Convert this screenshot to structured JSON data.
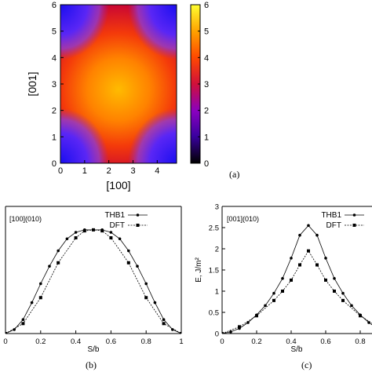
{
  "chart_data": [
    {
      "type": "heatmap",
      "panel_label": "(a)",
      "xlabel": "[100]",
      "ylabel": "[001]",
      "xlim": [
        0,
        4.8
      ],
      "ylim": [
        0,
        6
      ],
      "xticks": [
        0,
        1,
        2,
        3,
        4
      ],
      "yticks": [
        0,
        1,
        2,
        3,
        4,
        5,
        6
      ],
      "colorbar": {
        "min": 0,
        "max": 6,
        "ticks": [
          0,
          1,
          2,
          3,
          4,
          5,
          6
        ]
      },
      "colormap": [
        "#000000",
        "#4a00b0",
        "#8c00c8",
        "#d2003c",
        "#ff4a00",
        "#ff9a00",
        "#ffff30"
      ],
      "description_values": {
        "center_max": 3.9,
        "corner_min": 0.8
      }
    },
    {
      "type": "line",
      "panel_label": "(b)",
      "inset_label": "[100](010)",
      "xlabel": "S/b",
      "ylabel": "",
      "xlim": [
        0,
        1
      ],
      "xticks": [
        "0",
        "0.2",
        "0.4",
        "0.6",
        "0.8",
        "1"
      ],
      "series": [
        {
          "name": "THB1",
          "marker": "dot",
          "x": [
            0,
            0.05,
            0.1,
            0.15,
            0.2,
            0.25,
            0.3,
            0.35,
            0.4,
            0.45,
            0.5,
            0.55,
            0.6,
            0.65,
            0.7,
            0.75,
            0.8,
            0.85,
            0.9,
            0.95,
            1
          ],
          "y": [
            0,
            0.08,
            0.28,
            0.62,
            1.0,
            1.35,
            1.66,
            1.9,
            2.03,
            2.08,
            2.08,
            2.08,
            2.03,
            1.9,
            1.66,
            1.35,
            1.0,
            0.62,
            0.28,
            0.08,
            0
          ]
        },
        {
          "name": "DFT",
          "marker": "square",
          "x": [
            0,
            0.1,
            0.2,
            0.3,
            0.4,
            0.45,
            0.5,
            0.55,
            0.6,
            0.7,
            0.8,
            0.9,
            1
          ],
          "y": [
            0,
            0.2,
            0.72,
            1.42,
            1.92,
            2.06,
            2.08,
            2.06,
            1.92,
            1.42,
            0.72,
            0.2,
            0
          ]
        }
      ]
    },
    {
      "type": "line",
      "panel_label": "(c)",
      "inset_label": "[001](010)",
      "xlabel": "S/b",
      "ylabel": "E, J/m²",
      "xlim": [
        0,
        1
      ],
      "ylim": [
        0,
        3
      ],
      "xticks": [
        "0",
        "0.2",
        "0.4",
        "0.6",
        "0.8"
      ],
      "yticks": [
        "0",
        "0.5",
        "1",
        "1.5",
        "2",
        "2.5",
        "3"
      ],
      "series": [
        {
          "name": "THB1",
          "marker": "dot",
          "x": [
            0,
            0.05,
            0.1,
            0.15,
            0.2,
            0.25,
            0.3,
            0.35,
            0.4,
            0.45,
            0.5,
            0.55,
            0.6,
            0.65,
            0.7,
            0.75,
            0.8,
            0.85,
            0.9,
            0.95,
            1
          ],
          "y": [
            0,
            0.04,
            0.12,
            0.26,
            0.44,
            0.66,
            0.95,
            1.3,
            1.78,
            2.32,
            2.55,
            2.32,
            1.78,
            1.3,
            0.95,
            0.66,
            0.44,
            0.26,
            0.12,
            0.04,
            0
          ]
        },
        {
          "name": "DFT",
          "marker": "square",
          "x": [
            0,
            0.1,
            0.2,
            0.3,
            0.35,
            0.4,
            0.45,
            0.5,
            0.55,
            0.6,
            0.65,
            0.7,
            0.8,
            0.9,
            1
          ],
          "y": [
            0,
            0.16,
            0.42,
            0.78,
            1.0,
            1.26,
            1.62,
            1.95,
            1.62,
            1.26,
            1.0,
            0.78,
            0.42,
            0.16,
            0
          ]
        }
      ]
    }
  ]
}
